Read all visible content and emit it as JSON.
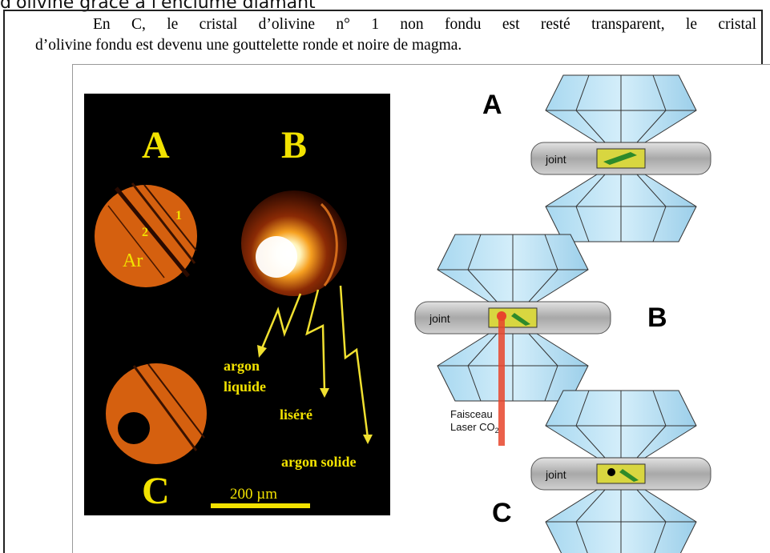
{
  "header": {
    "cut_line_text": "d'olivine grâce à l'enclume diamant"
  },
  "paragraph": {
    "line1": "En C, le cristal d’olivine n° 1 non fondu est resté transparent, le cristal",
    "line2": "d’olivine fondu est devenu une gouttelette ronde et noire de magma."
  },
  "photo": {
    "label_a": "A",
    "label_b": "B",
    "label_c": "C",
    "crystal_1": "1",
    "crystal_2": "2",
    "ar_label": "Ar",
    "arrow_argon_liquide_line1": "argon",
    "arrow_argon_liquide_line2": "liquide",
    "arrow_liseré": "liséré",
    "arrow_argon_solide": "argon solide",
    "scale_label": "200 µm",
    "colors": {
      "label": "#f2e200",
      "crystal": "#d5600f",
      "arrow": "#f0e030"
    }
  },
  "schematic": {
    "label_a": "A",
    "label_b": "B",
    "label_c": "C",
    "joint_a": "joint",
    "joint_b": "joint",
    "joint_c": "joint",
    "laser_line1": "Faisceau",
    "laser_line2": "Laser CO",
    "laser_sub": "2",
    "colors": {
      "diamond": "#bfe3f5",
      "gasket": "#bdbdbd",
      "sample": "#d8d640",
      "laser": "#e8452c"
    }
  }
}
